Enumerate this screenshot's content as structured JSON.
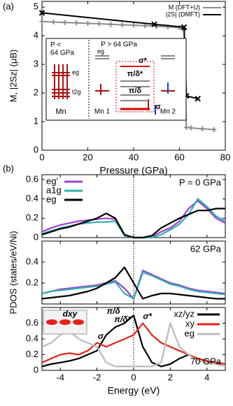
{
  "chart_data": [
    {
      "type": "line",
      "panel_label": "(a)",
      "xlabel": "Pressure (GPa)",
      "ylabel": "M, |2Sz| (μB)",
      "xlim": [
        0,
        80
      ],
      "xticks": [
        0,
        20,
        40,
        60,
        80
      ],
      "ylim": [
        0,
        5.2
      ],
      "yticks": [
        0,
        1,
        2,
        3,
        4,
        5
      ],
      "legend": "upper right",
      "series": [
        {
          "name": "M (DFT+U)",
          "color": "#8c8c8c",
          "marker": "+",
          "x": [
            0,
            5,
            10,
            15,
            20,
            25,
            30,
            35,
            40,
            45,
            50,
            55,
            60,
            62,
            63,
            65,
            70,
            75
          ],
          "values": [
            4.5,
            4.48,
            4.46,
            4.45,
            4.43,
            4.42,
            4.4,
            4.38,
            4.37,
            4.35,
            4.33,
            4.31,
            4.28,
            4.2,
            0.8,
            0.78,
            0.75,
            0.72
          ]
        },
        {
          "name": "|2S| (DMFT)",
          "color": "#000000",
          "marker": "x",
          "x": [
            0,
            49,
            62,
            63,
            68
          ],
          "values": [
            4.8,
            4.4,
            4.3,
            1.9,
            1.8
          ]
        }
      ]
    },
    {
      "type": "line",
      "panel_label": "(b)",
      "annotation": "P = 0 GPa",
      "legend": "upper left",
      "xlim": [
        -5,
        5
      ],
      "xticks": [
        -4,
        -2,
        0,
        2,
        4
      ],
      "ylim": [
        0,
        0.65
      ],
      "yticks": [
        0,
        0.2,
        0.4,
        0.6
      ],
      "x": [
        -5,
        -4.5,
        -4,
        -3.5,
        -3,
        -2.5,
        -2,
        -1.5,
        -1,
        -0.5,
        0,
        0.5,
        1,
        1.5,
        2,
        2.5,
        3,
        3.5,
        4,
        4.5,
        5
      ],
      "series": [
        {
          "name": "eg'",
          "color": "#a040d0",
          "values": [
            0.06,
            0.1,
            0.13,
            0.15,
            0.17,
            0.18,
            0.19,
            0.2,
            0.19,
            0.02,
            0,
            0,
            0.01,
            0.06,
            0.1,
            0.17,
            0.3,
            0.38,
            0.3,
            0.2,
            0.15
          ]
        },
        {
          "name": "a1g",
          "color": "#30b0b0",
          "values": [
            0.04,
            0.07,
            0.1,
            0.12,
            0.14,
            0.15,
            0.16,
            0.16,
            0.17,
            0.02,
            0,
            0,
            0,
            0.03,
            0.08,
            0.14,
            0.24,
            0.4,
            0.32,
            0.22,
            0.17
          ]
        },
        {
          "name": "eg",
          "color": "#000000",
          "values": [
            0.03,
            0.06,
            0.09,
            0.11,
            0.14,
            0.17,
            0.2,
            0.25,
            0.2,
            0.03,
            0,
            0,
            0.02,
            0.1,
            0.15,
            0.2,
            0.24,
            0.28,
            0.28,
            0.3,
            0.3
          ]
        }
      ]
    },
    {
      "type": "line",
      "annotation": "62 GPa",
      "ylabel": "PDOS (states/eV/Ni)",
      "xlim": [
        -5,
        5
      ],
      "xticks": [
        -4,
        -2,
        0,
        2,
        4
      ],
      "ylim": [
        0,
        0.6
      ],
      "yticks": [
        0.2,
        0.4
      ],
      "x": [
        -5,
        -4.5,
        -4,
        -3.5,
        -3,
        -2.5,
        -2,
        -1.5,
        -1,
        -0.5,
        0,
        0.5,
        1,
        1.5,
        2,
        2.5,
        3,
        3.5,
        4,
        4.5,
        5
      ],
      "series": [
        {
          "color": "#a040d0",
          "values": [
            0.1,
            0.12,
            0.14,
            0.15,
            0.16,
            0.17,
            0.18,
            0.2,
            0.22,
            0.15,
            0.05,
            0.32,
            0.28,
            0.24,
            0.2,
            0.18,
            0.15,
            0.13,
            0.12,
            0.11,
            0.1
          ]
        },
        {
          "color": "#30b0b0",
          "values": [
            0.1,
            0.12,
            0.13,
            0.14,
            0.15,
            0.16,
            0.17,
            0.19,
            0.21,
            0.1,
            0.05,
            0.3,
            0.27,
            0.23,
            0.19,
            0.17,
            0.14,
            0.12,
            0.11,
            0.1,
            0.09
          ]
        },
        {
          "color": "#000000",
          "values": [
            0.05,
            0.06,
            0.07,
            0.08,
            0.1,
            0.12,
            0.15,
            0.2,
            0.25,
            0.35,
            0.2,
            0.05,
            0.08,
            0.1,
            0.1,
            0.09,
            0.08,
            0.07,
            0.06,
            0.05,
            0.05
          ]
        }
      ]
    },
    {
      "type": "line",
      "annotation": "70 GPa",
      "xlabel": "Energy (eV)",
      "legend": "upper right",
      "labels": [
        "σ",
        "π/δ",
        "π/δ*",
        "σ*",
        "dxy"
      ],
      "xlim": [
        -5,
        5
      ],
      "xticks": [
        -4,
        -2,
        0,
        2,
        4
      ],
      "ylim": [
        0,
        0.8
      ],
      "yticks": [
        0,
        0.2,
        0.4,
        0.6
      ],
      "x": [
        -5,
        -4.5,
        -4,
        -3.5,
        -3,
        -2.5,
        -2,
        -1.5,
        -1,
        -0.5,
        0,
        0.5,
        1,
        1.5,
        2,
        2.5,
        3,
        3.5,
        4,
        4.5,
        5
      ],
      "series": [
        {
          "name": "xz/yz",
          "color": "#000000",
          "values": [
            0.05,
            0.08,
            0.1,
            0.12,
            0.15,
            0.2,
            0.25,
            0.45,
            0.55,
            0.6,
            0.7,
            0.3,
            0.1,
            0.05,
            0.08,
            0.15,
            0.2,
            0.15,
            0.12,
            0.1,
            0.08
          ]
        },
        {
          "name": "xy",
          "color": "#e8201a",
          "values": [
            0.1,
            0.15,
            0.2,
            0.22,
            0.2,
            0.25,
            0.35,
            0.3,
            0.35,
            0.4,
            0.45,
            0.6,
            0.45,
            0.35,
            0.3,
            0.25,
            0.2,
            0.15,
            0.12,
            0.1,
            0.08
          ]
        },
        {
          "name": "eg",
          "color": "#bbbbbb",
          "values": [
            0.3,
            0.35,
            0.45,
            0.5,
            0.4,
            0.35,
            0.3,
            0.1,
            0.05,
            0.05,
            0.05,
            0.05,
            0.05,
            0.1,
            0.6,
            0.3,
            0.2,
            0.12,
            0.1,
            0.08,
            0.05
          ]
        }
      ]
    }
  ],
  "inset_a": {
    "left_title": "P <\n64 GPa",
    "eg": "eg",
    "t2g": "t2g",
    "mn": "Mn",
    "right_title": "P > 64 GPa",
    "eg_right": "eg",
    "sigma_star": "σ*",
    "pi_delta_star": "π/δ*",
    "pi_delta": "π/δ",
    "sigma": "σ",
    "mn1": "Mn 1",
    "mn2": "Mn 2"
  }
}
